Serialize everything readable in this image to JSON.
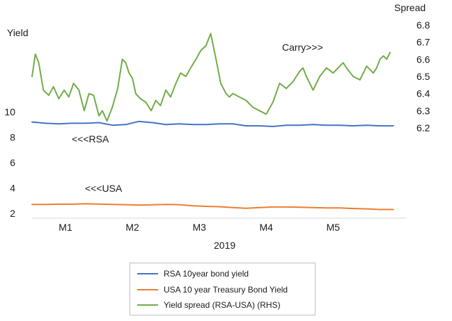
{
  "chart_data": {
    "type": "line",
    "left_axis": {
      "title": "Yield",
      "ticks": [
        2,
        4,
        6,
        8,
        10
      ],
      "range": [
        2,
        10
      ]
    },
    "right_axis": {
      "title": "Spread",
      "ticks": [
        6.2,
        6.3,
        6.4,
        6.5,
        6.6,
        6.7,
        6.8
      ],
      "range": [
        6.2,
        6.8
      ]
    },
    "x_axis": {
      "title": "2019",
      "tick_labels": [
        "M1",
        "M2",
        "M3",
        "M4",
        "M5"
      ],
      "range": [
        0,
        5.6
      ],
      "tick_positions": [
        0.5,
        1.5,
        2.5,
        3.5,
        4.5
      ]
    },
    "annotations": [
      "<<<RSA",
      "<<<USA",
      "Carry>>>"
    ],
    "legend_position": "bottom",
    "series": [
      {
        "name": "RSA 10year bond yield",
        "axis": "left",
        "color": "#4472C4",
        "x": [
          0,
          0.2,
          0.4,
          0.6,
          0.8,
          1.0,
          1.2,
          1.4,
          1.6,
          1.8,
          2.0,
          2.2,
          2.4,
          2.6,
          2.8,
          3.0,
          3.2,
          3.4,
          3.6,
          3.8,
          4.0,
          4.2,
          4.4,
          4.6,
          4.8,
          5.0,
          5.2,
          5.4
        ],
        "values": [
          9.2,
          9.1,
          9.05,
          9.1,
          9.1,
          9.15,
          8.95,
          9.0,
          9.25,
          9.15,
          9.0,
          9.05,
          9.0,
          9.0,
          9.05,
          9.05,
          8.9,
          8.9,
          8.85,
          8.95,
          8.95,
          9.0,
          8.95,
          8.95,
          8.9,
          8.95,
          8.9,
          8.9
        ]
      },
      {
        "name": "USA 10 year Treasury Bond Yield",
        "axis": "left",
        "color": "#ED7D31",
        "x": [
          0,
          0.2,
          0.4,
          0.6,
          0.8,
          1.0,
          1.2,
          1.4,
          1.6,
          1.8,
          2.0,
          2.2,
          2.4,
          2.6,
          2.8,
          3.0,
          3.2,
          3.4,
          3.6,
          3.8,
          4.0,
          4.2,
          4.4,
          4.6,
          4.8,
          5.0,
          5.2,
          5.4
        ],
        "values": [
          2.7,
          2.7,
          2.72,
          2.72,
          2.75,
          2.73,
          2.7,
          2.68,
          2.65,
          2.67,
          2.7,
          2.68,
          2.6,
          2.55,
          2.52,
          2.45,
          2.4,
          2.45,
          2.5,
          2.5,
          2.48,
          2.45,
          2.42,
          2.42,
          2.38,
          2.35,
          2.3,
          2.3
        ]
      },
      {
        "name": "Yield spread (RSA-USA) (RHS)",
        "axis": "right",
        "color": "#70AD47",
        "x": [
          0,
          0.05,
          0.1,
          0.17,
          0.25,
          0.32,
          0.4,
          0.48,
          0.55,
          0.62,
          0.7,
          0.78,
          0.85,
          0.92,
          1.0,
          1.05,
          1.12,
          1.2,
          1.28,
          1.35,
          1.4,
          1.45,
          1.5,
          1.55,
          1.62,
          1.7,
          1.78,
          1.85,
          1.92,
          2.0,
          2.07,
          2.15,
          2.22,
          2.3,
          2.37,
          2.45,
          2.52,
          2.6,
          2.67,
          2.75,
          2.82,
          2.9,
          2.95,
          3.0,
          3.05,
          3.1,
          3.2,
          3.3,
          3.4,
          3.5,
          3.6,
          3.7,
          3.8,
          3.85,
          3.9,
          3.95,
          4.0,
          4.05,
          4.1,
          4.2,
          4.3,
          4.4,
          4.5,
          4.6,
          4.65,
          4.7,
          4.8,
          4.9,
          5.0,
          5.1,
          5.15,
          5.2,
          5.25,
          5.3,
          5.35
        ],
        "values": [
          6.5,
          6.63,
          6.58,
          6.42,
          6.39,
          6.44,
          6.37,
          6.42,
          6.38,
          6.46,
          6.42,
          6.3,
          6.4,
          6.39,
          6.27,
          6.3,
          6.24,
          6.32,
          6.43,
          6.6,
          6.58,
          6.52,
          6.49,
          6.4,
          6.37,
          6.35,
          6.3,
          6.36,
          6.33,
          6.42,
          6.38,
          6.46,
          6.52,
          6.5,
          6.55,
          6.6,
          6.65,
          6.68,
          6.75,
          6.6,
          6.46,
          6.4,
          6.38,
          6.4,
          6.39,
          6.38,
          6.36,
          6.32,
          6.3,
          6.28,
          6.35,
          6.46,
          6.43,
          6.45,
          6.47,
          6.5,
          6.53,
          6.55,
          6.5,
          6.42,
          6.5,
          6.55,
          6.52,
          6.56,
          6.58,
          6.55,
          6.5,
          6.48,
          6.56,
          6.52,
          6.55,
          6.6,
          6.62,
          6.6,
          6.64
        ]
      }
    ]
  }
}
